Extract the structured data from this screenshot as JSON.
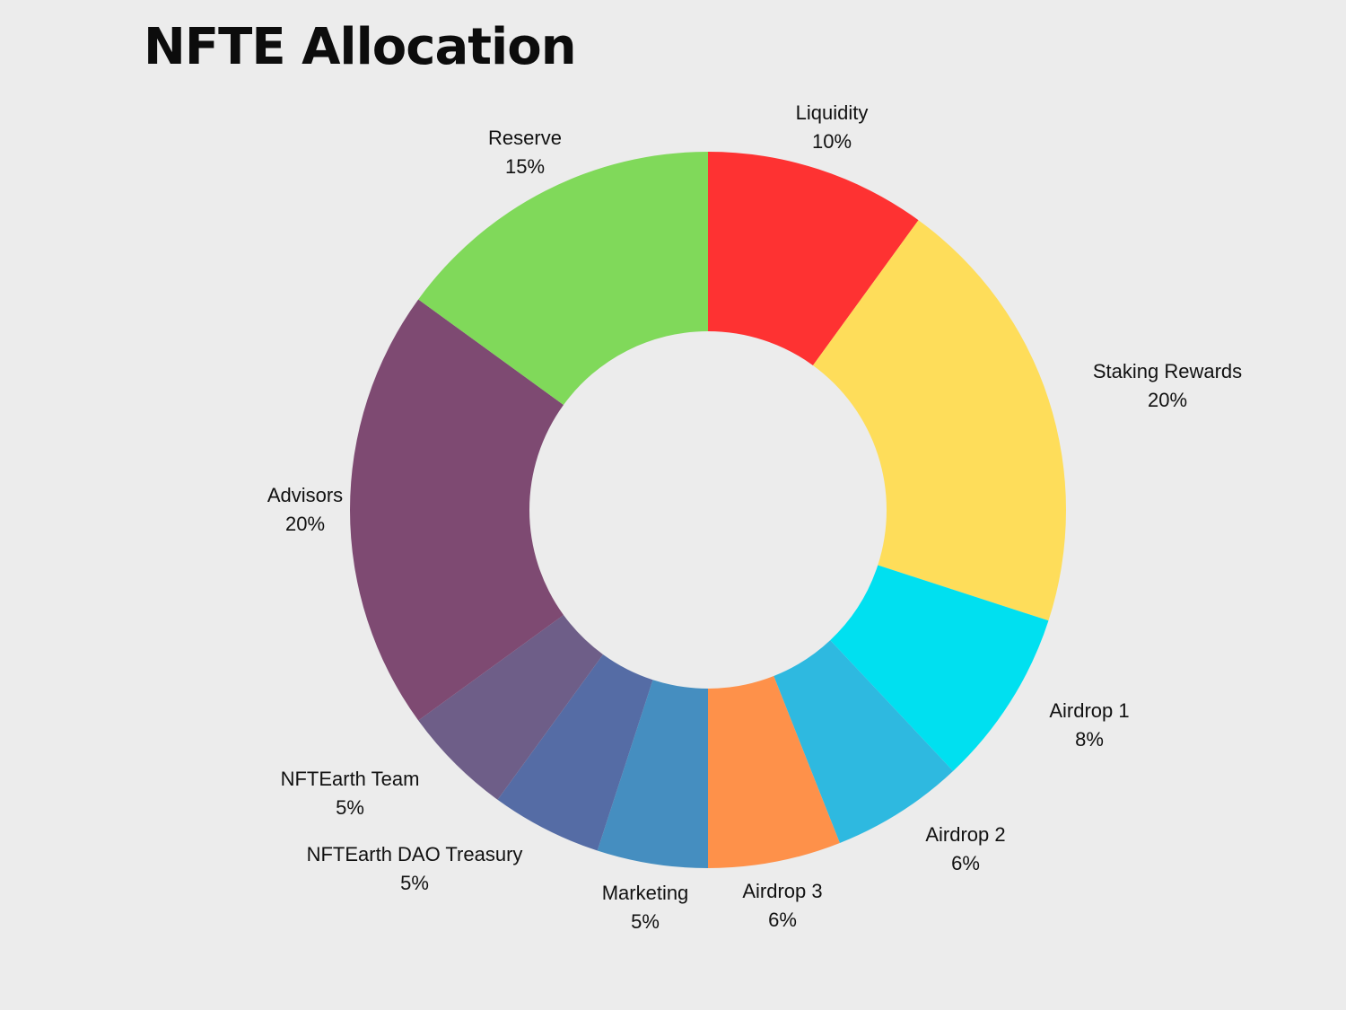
{
  "chart_data": {
    "type": "pie",
    "variant": "donut",
    "title": "NFTE Allocation",
    "legend": "none",
    "slices": [
      {
        "label": "Liquidity",
        "value": 10,
        "value_label": "10%",
        "color": "#fe3232"
      },
      {
        "label": "Staking Rewards",
        "value": 20,
        "value_label": "20%",
        "color": "#fedd5a"
      },
      {
        "label": "Airdrop 1",
        "value": 8,
        "value_label": "8%",
        "color": "#00e0f0"
      },
      {
        "label": "Airdrop 2",
        "value": 6,
        "value_label": "6%",
        "color": "#2eb9e0"
      },
      {
        "label": "Airdrop 3",
        "value": 6,
        "value_label": "6%",
        "color": "#fe914a"
      },
      {
        "label": "Marketing",
        "value": 5,
        "value_label": "5%",
        "color": "#458ec0"
      },
      {
        "label": "NFTEarth DAO Treasury",
        "value": 5,
        "value_label": "5%",
        "color": "#556ca5"
      },
      {
        "label": "NFTEarth Team",
        "value": 5,
        "value_label": "5%",
        "color": "#6e5e88"
      },
      {
        "label": "Advisors",
        "value": 20,
        "value_label": "20%",
        "color": "#7e4a72"
      },
      {
        "label": "Reserve",
        "value": 15,
        "value_label": "15%",
        "color": "#80d95a"
      }
    ]
  }
}
